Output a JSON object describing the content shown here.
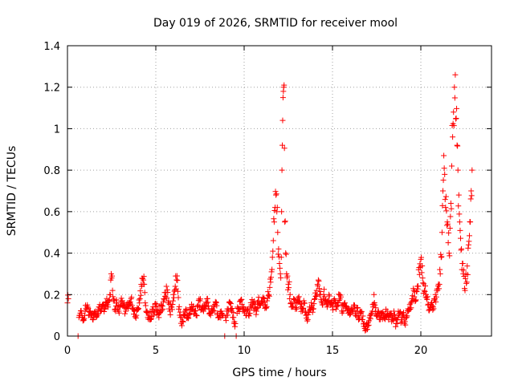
{
  "chart_data": {
    "type": "scatter",
    "title": "Day 019 of 2026, SRMTID for receiver mool",
    "xlabel": "GPS time / hours",
    "ylabel": "SRMTID / TECUs",
    "xlim": [
      0,
      24
    ],
    "ylim": [
      0,
      1.4
    ],
    "x_ticks": [
      0,
      5,
      10,
      15,
      20
    ],
    "x_tick_labels": [
      "0",
      "5",
      "10",
      "15",
      "20"
    ],
    "y_ticks": [
      0,
      0.2,
      0.4,
      0.6,
      0.8,
      1,
      1.2,
      1.4
    ],
    "y_tick_labels": [
      "0",
      "0.2",
      "0.4",
      "0.6",
      "0.8",
      "1",
      "1.2",
      "1.4"
    ],
    "grid": true,
    "marker": "plus",
    "color": "#ff0000",
    "series": [
      {
        "name": "SRMTID",
        "sample_step_hours": 0.1,
        "points": [
          [
            0.0,
            0.16
          ],
          [
            0.05,
            0.18
          ],
          [
            0.6,
            0.0
          ],
          [
            0.65,
            0.09
          ],
          [
            0.7,
            0.1
          ],
          [
            0.8,
            0.11
          ],
          [
            0.9,
            0.08
          ],
          [
            1.0,
            0.12
          ],
          [
            1.1,
            0.14
          ],
          [
            1.2,
            0.1
          ],
          [
            1.3,
            0.12
          ],
          [
            1.4,
            0.11
          ],
          [
            1.5,
            0.09
          ],
          [
            1.6,
            0.12
          ],
          [
            1.7,
            0.1
          ],
          [
            1.8,
            0.14
          ],
          [
            1.9,
            0.13
          ],
          [
            2.0,
            0.15
          ],
          [
            2.1,
            0.13
          ],
          [
            2.2,
            0.16
          ],
          [
            2.3,
            0.14
          ],
          [
            2.4,
            0.2
          ],
          [
            2.45,
            0.27
          ],
          [
            2.5,
            0.28
          ],
          [
            2.55,
            0.22
          ],
          [
            2.6,
            0.17
          ],
          [
            2.7,
            0.13
          ],
          [
            2.8,
            0.16
          ],
          [
            2.9,
            0.12
          ],
          [
            3.0,
            0.15
          ],
          [
            3.1,
            0.17
          ],
          [
            3.2,
            0.14
          ],
          [
            3.3,
            0.12
          ],
          [
            3.4,
            0.16
          ],
          [
            3.5,
            0.15
          ],
          [
            3.6,
            0.18
          ],
          [
            3.7,
            0.13
          ],
          [
            3.8,
            0.12
          ],
          [
            3.9,
            0.1
          ],
          [
            4.0,
            0.13
          ],
          [
            4.1,
            0.18
          ],
          [
            4.2,
            0.24
          ],
          [
            4.3,
            0.27
          ],
          [
            4.35,
            0.25
          ],
          [
            4.4,
            0.16
          ],
          [
            4.5,
            0.12
          ],
          [
            4.6,
            0.1
          ],
          [
            4.7,
            0.08
          ],
          [
            4.8,
            0.13
          ],
          [
            4.9,
            0.12
          ],
          [
            5.0,
            0.14
          ],
          [
            5.1,
            0.12
          ],
          [
            5.2,
            0.11
          ],
          [
            5.3,
            0.15
          ],
          [
            5.4,
            0.13
          ],
          [
            5.5,
            0.21
          ],
          [
            5.6,
            0.24
          ],
          [
            5.7,
            0.16
          ],
          [
            5.8,
            0.12
          ],
          [
            5.9,
            0.14
          ],
          [
            6.0,
            0.2
          ],
          [
            6.1,
            0.24
          ],
          [
            6.2,
            0.29
          ],
          [
            6.3,
            0.13
          ],
          [
            6.4,
            0.09
          ],
          [
            6.5,
            0.07
          ],
          [
            6.6,
            0.1
          ],
          [
            6.7,
            0.13
          ],
          [
            6.8,
            0.09
          ],
          [
            6.9,
            0.11
          ],
          [
            7.0,
            0.13
          ],
          [
            7.1,
            0.14
          ],
          [
            7.2,
            0.12
          ],
          [
            7.3,
            0.1
          ],
          [
            7.4,
            0.15
          ],
          [
            7.5,
            0.17
          ],
          [
            7.6,
            0.13
          ],
          [
            7.7,
            0.12
          ],
          [
            7.8,
            0.14
          ],
          [
            7.9,
            0.18
          ],
          [
            8.0,
            0.13
          ],
          [
            8.1,
            0.1
          ],
          [
            8.2,
            0.12
          ],
          [
            8.3,
            0.14
          ],
          [
            8.4,
            0.16
          ],
          [
            8.5,
            0.11
          ],
          [
            8.6,
            0.09
          ],
          [
            8.7,
            0.12
          ],
          [
            8.8,
            0.1
          ],
          [
            8.9,
            0.0
          ],
          [
            8.95,
            0.09
          ],
          [
            9.0,
            0.1
          ],
          [
            9.1,
            0.13
          ],
          [
            9.2,
            0.16
          ],
          [
            9.3,
            0.12
          ],
          [
            9.4,
            0.09
          ],
          [
            9.5,
            0.06
          ],
          [
            9.55,
            0.0
          ],
          [
            9.6,
            0.11
          ],
          [
            9.7,
            0.13
          ],
          [
            9.8,
            0.17
          ],
          [
            9.9,
            0.14
          ],
          [
            10.0,
            0.12
          ],
          [
            10.1,
            0.1
          ],
          [
            10.2,
            0.13
          ],
          [
            10.3,
            0.11
          ],
          [
            10.4,
            0.15
          ],
          [
            10.5,
            0.16
          ],
          [
            10.6,
            0.14
          ],
          [
            10.7,
            0.12
          ],
          [
            10.8,
            0.17
          ],
          [
            10.9,
            0.15
          ],
          [
            11.0,
            0.16
          ],
          [
            11.1,
            0.18
          ],
          [
            11.2,
            0.15
          ],
          [
            11.3,
            0.17
          ],
          [
            11.4,
            0.2
          ],
          [
            11.5,
            0.26
          ],
          [
            11.55,
            0.31
          ],
          [
            11.6,
            0.38
          ],
          [
            11.65,
            0.46
          ],
          [
            11.7,
            0.55
          ],
          [
            11.75,
            0.62
          ],
          [
            11.8,
            0.68
          ],
          [
            11.85,
            0.6
          ],
          [
            11.9,
            0.5
          ],
          [
            11.95,
            0.42
          ],
          [
            12.0,
            0.35
          ],
          [
            12.05,
            0.3
          ],
          [
            12.1,
            0.38
          ],
          [
            12.12,
            0.6
          ],
          [
            12.14,
            0.8
          ],
          [
            12.16,
            0.92
          ],
          [
            12.18,
            1.04
          ],
          [
            12.2,
            1.15
          ],
          [
            12.22,
            1.18
          ],
          [
            12.24,
            1.2
          ],
          [
            12.26,
            1.21
          ],
          [
            12.3,
            0.55
          ],
          [
            12.35,
            0.4
          ],
          [
            12.4,
            0.3
          ],
          [
            12.5,
            0.25
          ],
          [
            12.6,
            0.2
          ],
          [
            12.7,
            0.14
          ],
          [
            12.8,
            0.18
          ],
          [
            12.9,
            0.13
          ],
          [
            13.0,
            0.16
          ],
          [
            13.1,
            0.19
          ],
          [
            13.2,
            0.14
          ],
          [
            13.3,
            0.12
          ],
          [
            13.4,
            0.16
          ],
          [
            13.5,
            0.1
          ],
          [
            13.6,
            0.08
          ],
          [
            13.7,
            0.14
          ],
          [
            13.8,
            0.16
          ],
          [
            13.9,
            0.13
          ],
          [
            14.0,
            0.18
          ],
          [
            14.1,
            0.22
          ],
          [
            14.2,
            0.27
          ],
          [
            14.3,
            0.2
          ],
          [
            14.4,
            0.16
          ],
          [
            14.5,
            0.2
          ],
          [
            14.6,
            0.17
          ],
          [
            14.7,
            0.14
          ],
          [
            14.8,
            0.2
          ],
          [
            14.9,
            0.16
          ],
          [
            15.0,
            0.14
          ],
          [
            15.1,
            0.18
          ],
          [
            15.2,
            0.13
          ],
          [
            15.3,
            0.16
          ],
          [
            15.4,
            0.2
          ],
          [
            15.5,
            0.15
          ],
          [
            15.6,
            0.12
          ],
          [
            15.7,
            0.16
          ],
          [
            15.8,
            0.14
          ],
          [
            15.9,
            0.11
          ],
          [
            16.0,
            0.13
          ],
          [
            16.1,
            0.12
          ],
          [
            16.2,
            0.15
          ],
          [
            16.3,
            0.1
          ],
          [
            16.4,
            0.12
          ],
          [
            16.5,
            0.09
          ],
          [
            16.6,
            0.11
          ],
          [
            16.7,
            0.08
          ],
          [
            16.8,
            0.06
          ],
          [
            16.9,
            0.03
          ],
          [
            17.0,
            0.05
          ],
          [
            17.1,
            0.09
          ],
          [
            17.2,
            0.11
          ],
          [
            17.3,
            0.14
          ],
          [
            17.35,
            0.2
          ],
          [
            17.4,
            0.15
          ],
          [
            17.5,
            0.1
          ],
          [
            17.6,
            0.12
          ],
          [
            17.7,
            0.08
          ],
          [
            17.8,
            0.11
          ],
          [
            17.9,
            0.09
          ],
          [
            18.0,
            0.1
          ],
          [
            18.1,
            0.12
          ],
          [
            18.2,
            0.09
          ],
          [
            18.3,
            0.11
          ],
          [
            18.4,
            0.08
          ],
          [
            18.5,
            0.1
          ],
          [
            18.6,
            0.06
          ],
          [
            18.7,
            0.09
          ],
          [
            18.8,
            0.11
          ],
          [
            18.9,
            0.08
          ],
          [
            19.0,
            0.1
          ],
          [
            19.1,
            0.07
          ],
          [
            19.2,
            0.09
          ],
          [
            19.3,
            0.12
          ],
          [
            19.4,
            0.13
          ],
          [
            19.5,
            0.18
          ],
          [
            19.6,
            0.22
          ],
          [
            19.7,
            0.17
          ],
          [
            19.8,
            0.24
          ],
          [
            19.9,
            0.33
          ],
          [
            20.0,
            0.37
          ],
          [
            20.1,
            0.28
          ],
          [
            20.2,
            0.22
          ],
          [
            20.3,
            0.2
          ],
          [
            20.4,
            0.15
          ],
          [
            20.5,
            0.13
          ],
          [
            20.6,
            0.16
          ],
          [
            20.7,
            0.14
          ],
          [
            20.8,
            0.18
          ],
          [
            20.9,
            0.22
          ],
          [
            21.0,
            0.25
          ],
          [
            21.1,
            0.3
          ],
          [
            21.15,
            0.38
          ],
          [
            21.2,
            0.5
          ],
          [
            21.25,
            0.7
          ],
          [
            21.3,
            0.87
          ],
          [
            21.35,
            0.78
          ],
          [
            21.4,
            0.62
          ],
          [
            21.5,
            0.55
          ],
          [
            21.55,
            0.45
          ],
          [
            21.6,
            0.4
          ],
          [
            21.65,
            0.52
          ],
          [
            21.7,
            0.64
          ],
          [
            21.75,
            0.82
          ],
          [
            21.8,
            0.96
          ],
          [
            21.85,
            1.08
          ],
          [
            21.9,
            1.2
          ],
          [
            21.95,
            1.26
          ],
          [
            22.0,
            1.05
          ],
          [
            22.05,
            0.92
          ],
          [
            22.1,
            0.8
          ],
          [
            22.15,
            0.68
          ],
          [
            22.2,
            0.55
          ],
          [
            22.3,
            0.42
          ],
          [
            22.35,
            0.35
          ],
          [
            22.4,
            0.3
          ],
          [
            22.5,
            0.22
          ],
          [
            22.55,
            0.3
          ],
          [
            22.6,
            0.26
          ],
          [
            22.7,
            0.44
          ],
          [
            22.8,
            0.55
          ],
          [
            22.85,
            0.7
          ],
          [
            22.9,
            0.8
          ]
        ]
      }
    ]
  }
}
